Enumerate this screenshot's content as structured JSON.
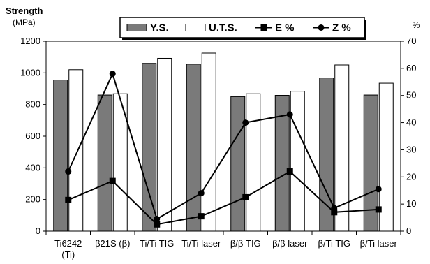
{
  "chart_data": {
    "type": "bar",
    "categories": [
      [
        "Ti6242",
        "(Ti)"
      ],
      [
        "β21S (β)"
      ],
      [
        "Ti/Ti TIG"
      ],
      [
        "Ti/Ti laser"
      ],
      [
        "β/β TIG"
      ],
      [
        "β/β laser"
      ],
      [
        "β/Ti TIG"
      ],
      [
        "β/Ti laser"
      ]
    ],
    "y_left": {
      "title": "Strength",
      "unit": "(MPa)",
      "ylim": [
        0,
        1200
      ],
      "ticks": [
        "0",
        "200",
        "400",
        "600",
        "800",
        "1000",
        "1200"
      ]
    },
    "y_right": {
      "title": "%",
      "ylim": [
        0,
        70
      ],
      "ticks": [
        "0",
        "10",
        "20",
        "30",
        "40",
        "50",
        "60",
        "70"
      ]
    },
    "series": [
      {
        "name": "Y.S.",
        "kind": "bar",
        "axis": "left",
        "color": "#7a7a7a",
        "values": [
          955,
          860,
          1060,
          1055,
          850,
          858,
          968,
          860
        ]
      },
      {
        "name": "U.T.S.",
        "kind": "bar",
        "axis": "left",
        "color": "#ffffff",
        "values": [
          1020,
          868,
          1092,
          1125,
          868,
          884,
          1050,
          935
        ]
      },
      {
        "name": "E %",
        "kind": "line",
        "marker": "square",
        "axis": "right",
        "color": "#000000",
        "values": [
          11.5,
          18.5,
          2.5,
          5.5,
          12.5,
          22,
          7,
          8
        ]
      },
      {
        "name": "Z %",
        "kind": "line",
        "marker": "circle",
        "axis": "right",
        "color": "#000000",
        "values": [
          22,
          58,
          4.5,
          14,
          40,
          43,
          8.5,
          15.5
        ]
      }
    ],
    "grid": false,
    "legend_position": "top"
  }
}
